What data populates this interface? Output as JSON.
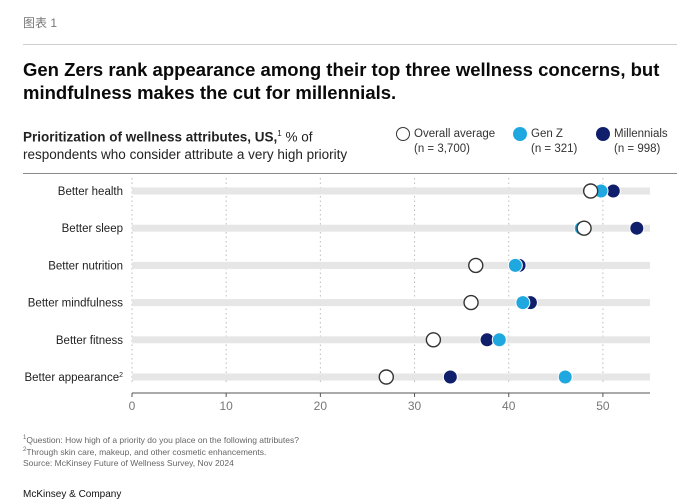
{
  "figure_label": "图表 1",
  "headline": "Gen Zers rank appearance among their top three wellness concerns, but mindfulness makes the cut for millennials.",
  "subtitle": {
    "bold": "Prioritization of wellness attributes, US,",
    "sup": "1",
    "rest": " % of respondents who consider attribute a very high priority"
  },
  "legend": [
    {
      "label": "Overall average",
      "n": "(n = 3,700)",
      "key": "overall"
    },
    {
      "label": "Gen Z",
      "n": "(n = 321)",
      "key": "genz"
    },
    {
      "label": "Millennials",
      "n": "(n = 998)",
      "key": "millennials"
    }
  ],
  "colors": {
    "overall_fill": "#ffffff",
    "overall_stroke": "#333333",
    "genz": "#1fa8e0",
    "millennials": "#0f1f6b",
    "track": "#e6e6e6",
    "grid": "#bdbdbd"
  },
  "chart_data": {
    "type": "dot",
    "categories": [
      "Better health",
      "Better sleep",
      "Better nutrition",
      "Better mindfulness",
      "Better fitness",
      "Better appearance"
    ],
    "category_sups": [
      "",
      "",
      "",
      "",
      "",
      "2"
    ],
    "series": [
      {
        "name": "Overall average",
        "values": [
          48.7,
          48.0,
          36.5,
          36.0,
          32.0,
          27.0
        ]
      },
      {
        "name": "Gen Z",
        "values": [
          49.8,
          47.7,
          40.7,
          41.5,
          39.0,
          46.0
        ]
      },
      {
        "name": "Millennials",
        "values": [
          51.1,
          53.6,
          41.1,
          42.3,
          37.7,
          33.8
        ]
      }
    ],
    "xlim": [
      0,
      55
    ],
    "xticks": [
      0,
      10,
      20,
      30,
      40,
      50
    ],
    "grid": true
  },
  "footnotes": [
    {
      "sup": "1",
      "text": "Question: How high of a priority do you place on the following attributes?"
    },
    {
      "sup": "2",
      "text": "Through skin care, makeup, and other cosmetic enhancements."
    },
    {
      "sup": "",
      "text": "Source: McKinsey Future of Wellness Survey, Nov 2024"
    }
  ],
  "brand": "McKinsey & Company"
}
